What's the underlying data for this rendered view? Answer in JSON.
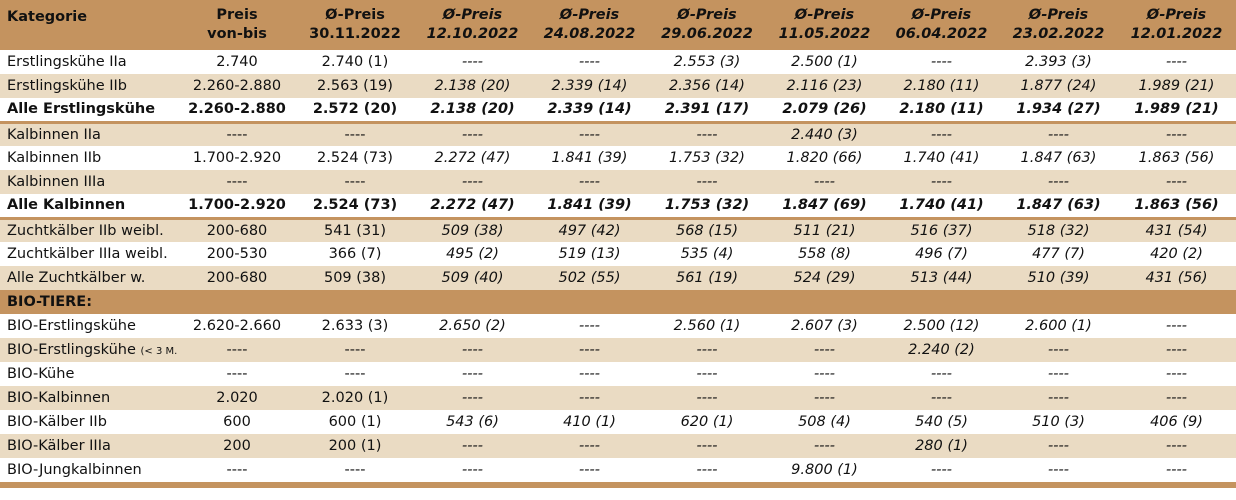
{
  "header": {
    "kategorie": "Kategorie",
    "preis_1": "Preis",
    "preis_2": "von-bis",
    "cols": [
      {
        "l1": "Ø-Preis",
        "l2": "30.11.2022"
      },
      {
        "l1": "Ø-Preis",
        "l2": "12.10.2022"
      },
      {
        "l1": "Ø-Preis",
        "l2": "24.08.2022"
      },
      {
        "l1": "Ø-Preis",
        "l2": "29.06.2022"
      },
      {
        "l1": "Ø-Preis",
        "l2": "11.05.2022"
      },
      {
        "l1": "Ø-Preis",
        "l2": "06.04.2022"
      },
      {
        "l1": "Ø-Preis",
        "l2": "23.02.2022"
      },
      {
        "l1": "Ø-Preis",
        "l2": "12.01.2022"
      }
    ]
  },
  "rows": [
    {
      "cat": "Erstlingskühe IIa",
      "price": "2.740",
      "v": [
        "2.740 (1)",
        "----",
        "----",
        "2.553 (3)",
        "2.500 (1)",
        "----",
        "2.393 (3)",
        "----"
      ]
    },
    {
      "cat": "Erstlingskühe IIb",
      "price": "2.260-2.880",
      "v": [
        "2.563 (19)",
        "2.138 (20)",
        "2.339 (14)",
        "2.356 (14)",
        "2.116 (23)",
        "2.180 (11)",
        "1.877 (24)",
        "1.989 (21)"
      ]
    },
    {
      "cat": "Alle Erstlingskühe",
      "price": "2.260-2.880",
      "v": [
        "2.572 (20)",
        "2.138 (20)",
        "2.339 (14)",
        "2.391 (17)",
        "2.079 (26)",
        "2.180 (11)",
        "1.934 (27)",
        "1.989 (21)"
      ]
    },
    {
      "cat": "Kalbinnen IIa",
      "price": "----",
      "v": [
        "----",
        "----",
        "----",
        "----",
        "2.440 (3)",
        "----",
        "----",
        "----"
      ]
    },
    {
      "cat": "Kalbinnen IIb",
      "price": "1.700-2.920",
      "v": [
        "2.524 (73)",
        "2.272 (47)",
        "1.841 (39)",
        "1.753 (32)",
        "1.820 (66)",
        "1.740 (41)",
        "1.847 (63)",
        "1.863 (56)"
      ]
    },
    {
      "cat": "Kalbinnen IIIa",
      "price": "----",
      "v": [
        "----",
        "----",
        "----",
        "----",
        "----",
        "----",
        "----",
        "----"
      ]
    },
    {
      "cat": "Alle Kalbinnen",
      "price": "1.700-2.920",
      "v": [
        "2.524 (73)",
        "2.272 (47)",
        "1.841 (39)",
        "1.753 (32)",
        "1.847 (69)",
        "1.740 (41)",
        "1.847 (63)",
        "1.863 (56)"
      ]
    },
    {
      "cat": "Zuchtkälber IIb weibl.",
      "price": "200-680",
      "v": [
        "541 (31)",
        "509 (38)",
        "497 (42)",
        "568 (15)",
        "511 (21)",
        "516 (37)",
        "518 (32)",
        "431 (54)"
      ]
    },
    {
      "cat": "Zuchtkälber IIIa weibl.",
      "price": "200-530",
      "v": [
        "366 (7)",
        "495 (2)",
        "519 (13)",
        "535 (4)",
        "558 (8)",
        "496 (7)",
        "477 (7)",
        "420 (2)"
      ]
    },
    {
      "cat": "Alle Zuchtkälber w.",
      "price": "200-680",
      "v": [
        "509 (38)",
        "509 (40)",
        "502 (55)",
        "561 (19)",
        "524 (29)",
        "513 (44)",
        "510 (39)",
        "431 (56)"
      ]
    }
  ],
  "bio_title": "BIO-TIERE:",
  "bio_rows": [
    {
      "cat": "BIO-Erstlingskühe",
      "price": "2.620-2.660",
      "v": [
        "2.633 (3)",
        "2.650 (2)",
        "----",
        "2.560 (1)",
        "2.607 (3)",
        "2.500 (12)",
        "2.600 (1)",
        "----"
      ]
    },
    {
      "cat": "BIO-Erstlingskühe",
      "cat_small": "(< 3 M.)",
      "price": "----",
      "v": [
        "----",
        "----",
        "----",
        "----",
        "----",
        "2.240 (2)",
        "----",
        "----"
      ]
    },
    {
      "cat": "BIO-Kühe",
      "price": "----",
      "v": [
        "----",
        "----",
        "----",
        "----",
        "----",
        "----",
        "----",
        "----"
      ]
    },
    {
      "cat": "BIO-Kalbinnen",
      "price": "2.020",
      "v": [
        "2.020 (1)",
        "----",
        "----",
        "----",
        "----",
        "----",
        "----",
        "----"
      ]
    },
    {
      "cat": "BIO-Kälber IIb",
      "price": "600",
      "v": [
        "600 (1)",
        "543 (6)",
        "410 (1)",
        "620 (1)",
        "508 (4)",
        "540 (5)",
        "510 (3)",
        "406 (9)"
      ]
    },
    {
      "cat": "BIO-Kälber IIIa",
      "price": "200",
      "v": [
        "200 (1)",
        "----",
        "----",
        "----",
        "----",
        "280 (1)",
        "----",
        "----"
      ]
    },
    {
      "cat": "BIO-Jungkalbinnen",
      "price": "----",
      "v": [
        "----",
        "----",
        "----",
        "----",
        "9.800 (1)",
        "----",
        "----",
        "----"
      ]
    }
  ]
}
